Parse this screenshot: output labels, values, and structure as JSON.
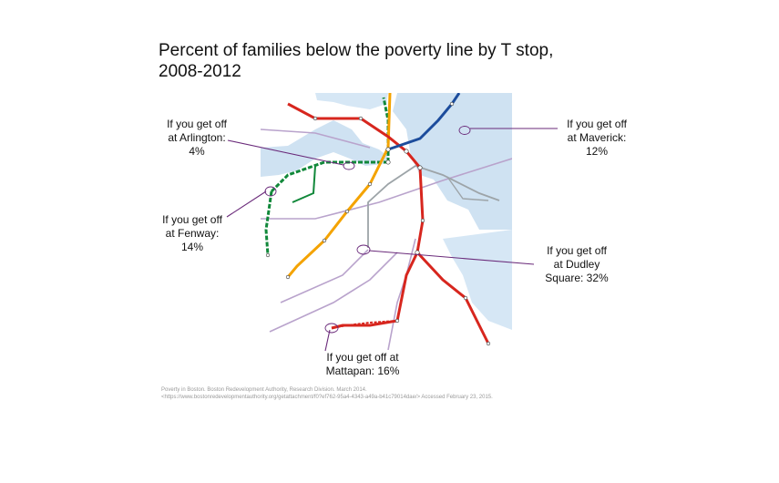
{
  "title": {
    "line1": "Percent of families below the poverty line by T stop,",
    "line2": "2008-2012"
  },
  "callouts": {
    "arlington": {
      "line1": "If you get off",
      "line2": "at Arlington:",
      "line3": "4%"
    },
    "maverick": {
      "line1": "If you get off",
      "line2": "at Maverick:",
      "line3": "12%"
    },
    "fenway": {
      "line1": "If you get off",
      "line2": "at Fenway:",
      "line3": "14%"
    },
    "dudley": {
      "line1": "If you get off",
      "line2": "at Dudley",
      "line3": "Square: 32%"
    },
    "mattapan": {
      "line1": "If you get off at",
      "line2": "Mattapan: 16%"
    }
  },
  "source": {
    "line1": "Poverty in Boston. Boston Redevelopment Authority, Research Division. March 2014.",
    "line2": "<https://www.bostonredevelopmentauthority.org/getattachment/f0?ef762-95a4-4343-a49a-b41c79014dae/> Accessed February 23, 2015."
  },
  "colors": {
    "red_line": "#d7261e",
    "orange_line": "#f4a300",
    "green_line": "#11883a",
    "blue_line": "#1c4c9c",
    "silver_line": "#9da4a8",
    "commuter_rail": "#a889bf",
    "water": "#c9dff0",
    "leader": "#6a2a7a"
  },
  "icons": {
    "station": "station-dot-icon",
    "transfer": "transfer-station-icon",
    "highlight": "highlight-circle-icon"
  }
}
